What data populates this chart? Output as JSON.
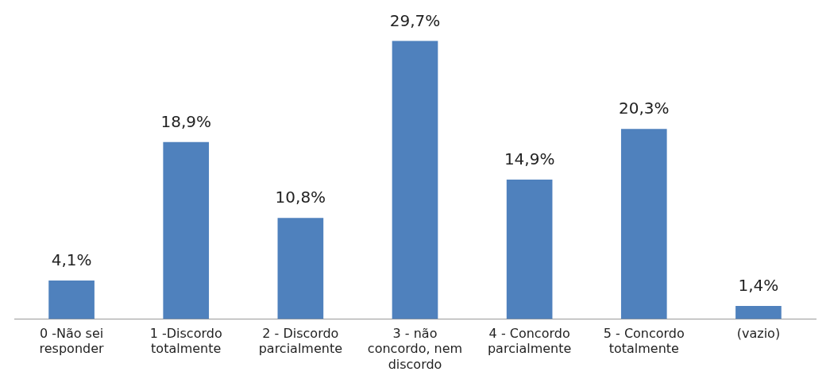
{
  "chart_data": {
    "type": "bar",
    "categories": [
      "0 -Não sei responder",
      "1 -Discordo totalmente",
      "2 - Discordo parcialmente",
      "3 - não concordo, nem discordo",
      "4 - Concordo parcialmente",
      "5 - Concordo totalmente",
      "(vazio)"
    ],
    "values": [
      4.1,
      18.9,
      10.8,
      29.7,
      14.9,
      20.3,
      1.4
    ],
    "value_labels": [
      "4,1%",
      "18,9%",
      "10,8%",
      "29,7%",
      "14,9%",
      "20,3%",
      "1,4%"
    ],
    "color": "#4f81bd",
    "grid": false,
    "legend": false
  }
}
